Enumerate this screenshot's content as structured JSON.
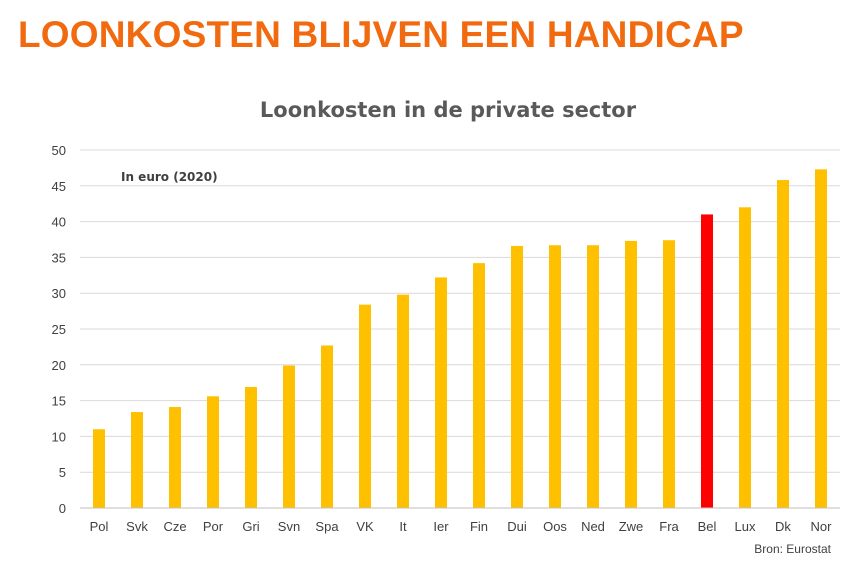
{
  "slide": {
    "title": "LOONKOSTEN BLIJVEN EEN HANDICAP"
  },
  "chart_data": {
    "type": "bar",
    "title": "Loonkosten in de private sector",
    "annotation": "In euro (2020)",
    "source": "Bron: Eurostat",
    "xlabel": "",
    "ylabel": "",
    "ylim": [
      0,
      50
    ],
    "yticks": [
      0,
      5,
      10,
      15,
      20,
      25,
      30,
      35,
      40,
      45,
      50
    ],
    "grid": true,
    "legend": "none",
    "categories": [
      "Pol",
      "Svk",
      "Cze",
      "Por",
      "Gri",
      "Svn",
      "Spa",
      "VK",
      "It",
      "Ier",
      "Fin",
      "Dui",
      "Oos",
      "Ned",
      "Zwe",
      "Fra",
      "Bel",
      "Lux",
      "Dk",
      "Nor"
    ],
    "values": [
      11.0,
      13.4,
      14.1,
      15.6,
      16.9,
      19.9,
      22.7,
      28.4,
      29.8,
      32.2,
      34.2,
      36.6,
      36.7,
      36.7,
      37.3,
      37.4,
      41.0,
      42.0,
      45.8,
      47.3
    ],
    "bar_color": "#ffc000",
    "highlight_category": "Bel",
    "highlight_color": "#ff0000"
  }
}
